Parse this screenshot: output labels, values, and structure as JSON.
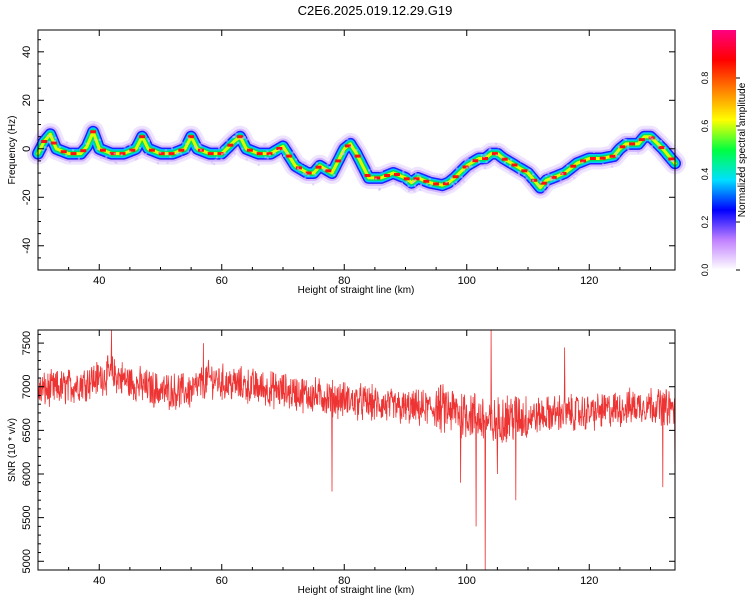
{
  "figure": {
    "title": "C2E6.2025.019.12.29.G19"
  },
  "chart_data": [
    {
      "type": "heatmap",
      "xlabel": "Height of straight line (km)",
      "ylabel": "Frequency (Hz)",
      "xlim": [
        30,
        134
      ],
      "ylim": [
        -50,
        49
      ],
      "x_ticks": [
        40,
        60,
        80,
        100,
        120
      ],
      "y_ticks": [
        -40,
        -20,
        0,
        20,
        40
      ],
      "colorbar": {
        "label": "Normalized spectral amplitude",
        "range": [
          0,
          1
        ],
        "ticks": [
          "0.0",
          "0.2",
          "0.4",
          "0.6",
          "0.8"
        ],
        "colors": [
          "#ffffff",
          "#c080ff",
          "#0000ff",
          "#00e0ff",
          "#00ff40",
          "#ffff00",
          "#ff8000",
          "#ff0000",
          "#ff0080"
        ]
      },
      "ridge": {
        "x": [
          30,
          31,
          32,
          33,
          35,
          37,
          38,
          39,
          40,
          42,
          44,
          46,
          47,
          48,
          50,
          52,
          54,
          55,
          56,
          58,
          60,
          62,
          63,
          64,
          66,
          68,
          70,
          72,
          74,
          75,
          76,
          78,
          80,
          81,
          82,
          84,
          85,
          86,
          88,
          90,
          91,
          92,
          94,
          96,
          97,
          98,
          100,
          102,
          103,
          104,
          105,
          106,
          108,
          110,
          112,
          113,
          114,
          116,
          118,
          120,
          122,
          124,
          125,
          126,
          128,
          129,
          130,
          132,
          134
        ],
        "y": [
          -2,
          3,
          6,
          0,
          -2,
          -2,
          1,
          7,
          0,
          -2,
          -2,
          0,
          5,
          0,
          -2,
          -2,
          0,
          5,
          0,
          -2,
          -2,
          3,
          5,
          0,
          -2,
          -2,
          1,
          -7,
          -10,
          -10,
          -7,
          -10,
          0,
          2,
          -2,
          -12,
          -12,
          -12,
          -10,
          -12,
          -14,
          -12,
          -14,
          -15,
          -14,
          -12,
          -7,
          -4,
          -4,
          -2,
          -2,
          -4,
          -7,
          -10,
          -16,
          -13,
          -12,
          -10,
          -6,
          -4,
          -4,
          -3,
          0,
          2,
          2,
          5,
          5,
          0,
          -6
        ]
      }
    },
    {
      "type": "line",
      "xlabel": "Height of straight line (km)",
      "ylabel": "SNR (10 * v/v)",
      "xlim": [
        30,
        134
      ],
      "ylim": [
        4900,
        7650
      ],
      "x_ticks": [
        40,
        60,
        80,
        100,
        120
      ],
      "y_ticks": [
        5000,
        5500,
        6000,
        6500,
        7000,
        7500
      ],
      "color": "#ee3333",
      "baseline": {
        "x": [
          30,
          35,
          40,
          42,
          45,
          50,
          55,
          58,
          60,
          65,
          70,
          75,
          80,
          85,
          90,
          95,
          100,
          102,
          104,
          106,
          110,
          115,
          120,
          125,
          130,
          134
        ],
        "y": [
          6950,
          7000,
          7100,
          7150,
          7050,
          6950,
          6950,
          7100,
          7050,
          7000,
          6950,
          6900,
          6850,
          6800,
          6750,
          6750,
          6700,
          6650,
          6550,
          6650,
          6650,
          6700,
          6700,
          6750,
          6800,
          6750
        ]
      },
      "spikes": [
        {
          "x": 42,
          "y": 7650
        },
        {
          "x": 57,
          "y": 7500
        },
        {
          "x": 78,
          "y": 5800
        },
        {
          "x": 99,
          "y": 5900
        },
        {
          "x": 101.5,
          "y": 5400
        },
        {
          "x": 103,
          "y": 4900
        },
        {
          "x": 104,
          "y": 7650
        },
        {
          "x": 105,
          "y": 6000
        },
        {
          "x": 108,
          "y": 5700
        },
        {
          "x": 116,
          "y": 7450
        },
        {
          "x": 132,
          "y": 5850
        },
        {
          "x": 134,
          "y": 6100
        }
      ]
    }
  ]
}
